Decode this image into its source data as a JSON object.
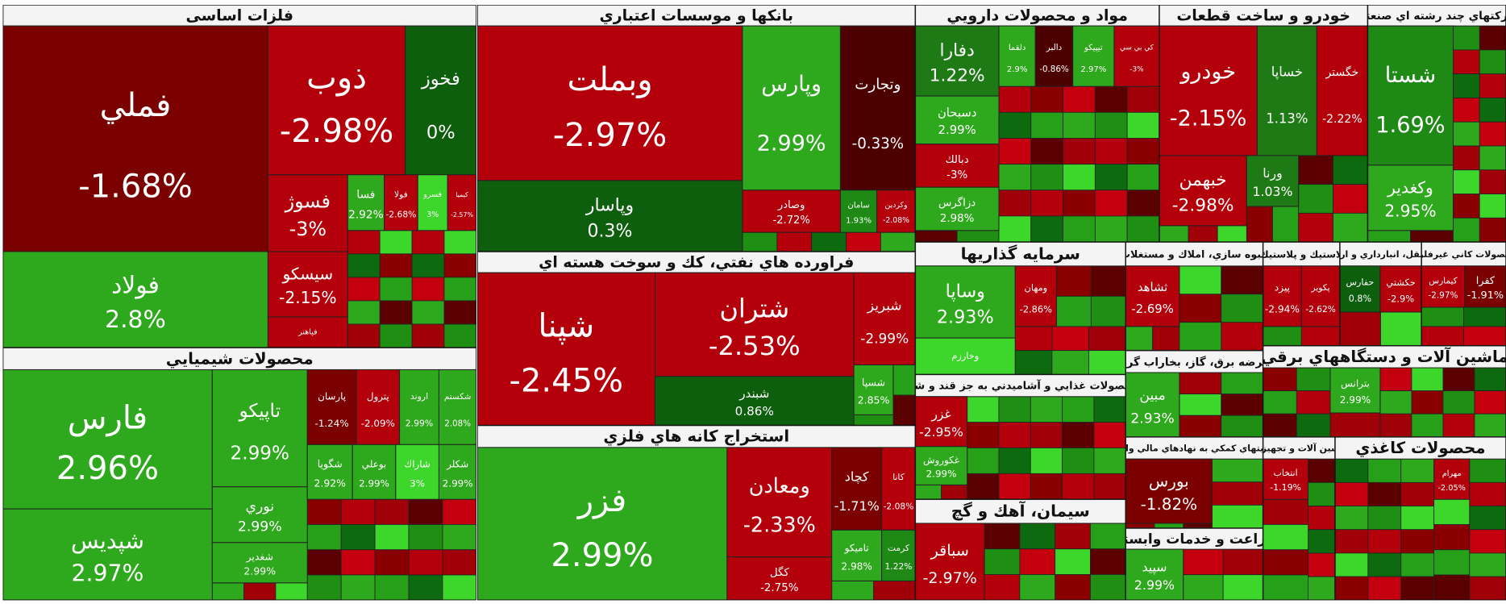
{
  "chart_data": {
    "type": "treemap",
    "sectors": [
      {
        "title": "فلزات اساسی",
        "categories": [
          "فملي",
          "فولاد",
          "ذوب",
          "فخوز",
          "فسوژ",
          "سيسكو",
          "فپاهنر",
          "فسا",
          "فولا",
          "فسرو",
          "كيميا"
        ],
        "values": [
          -1.68,
          2.8,
          -2.98,
          0,
          -3,
          -2.15,
          null,
          2.92,
          -2.68,
          3,
          -2.57
        ],
        "value_labels": [
          "-1.68%",
          "2.8%",
          "-2.98%",
          "0%",
          "-3%",
          "-2.15%",
          null,
          "2.92%",
          "-2.68%",
          "3%",
          "-2.57%"
        ],
        "colors": [
          "#7b0000",
          "#2ea81c",
          "#b3000b",
          "#0d5e0d",
          "#b3000b",
          "#b3000b",
          "#b3000b",
          "#2ea81c",
          "#b3000b",
          "#3dd62a",
          "#b3000b"
        ]
      },
      {
        "title": "محصولات شيميايي",
        "categories": [
          "فارس",
          "شپديس",
          "تاپيكو",
          "نوري",
          "شغدير",
          "پارسان",
          "پترول",
          "اروند",
          "شكستم",
          "شگويا",
          "بوعلي",
          "شاراك",
          "شكلر"
        ],
        "values": [
          2.96,
          2.97,
          2.99,
          2.99,
          2.99,
          -1.24,
          -2.09,
          2.99,
          2.08,
          2.92,
          2.99,
          3,
          2.99
        ],
        "value_labels": [
          "2.96%",
          "2.97%",
          "2.99%",
          "2.99%",
          "2.99%",
          "-1.24%",
          "-2.09%",
          "2.99%",
          "2.08%",
          "2.92%",
          "2.99%",
          "3%",
          "2.99%"
        ],
        "colors": [
          "#2ea81c",
          "#2ea81c",
          "#2ea81c",
          "#2ea81c",
          "#2ea81c",
          "#7b0000",
          "#b3000b",
          "#2ea81c",
          "#2ea81c",
          "#2ea81c",
          "#2ea81c",
          "#3dd62a",
          "#2ea81c"
        ]
      },
      {
        "title": "بانكها و موسسات اعتباري",
        "categories": [
          "وبملت",
          "وپاسار",
          "وپارس",
          "وتجارت",
          "وصادر",
          "سامان",
          "وكردين"
        ],
        "values": [
          -2.97,
          0.3,
          2.99,
          -0.33,
          -2.72,
          1.93,
          -2.08
        ],
        "value_labels": [
          "-2.97%",
          "0.3%",
          "2.99%",
          "-0.33%",
          "-2.72%",
          "1.93%",
          "-2.08%"
        ],
        "colors": [
          "#b3000b",
          "#0d5e0d",
          "#2ea81c",
          "#4d0000",
          "#b3000b",
          "#1e8a15",
          "#b3000b"
        ]
      },
      {
        "title": "فراورده هاي نفتي، كك و سوخت هسته اي",
        "categories": [
          "شپنا",
          "شتران",
          "شبندر",
          "شبريز",
          "شسپا"
        ],
        "values": [
          -2.45,
          -2.53,
          0.86,
          -2.99,
          2.85
        ],
        "value_labels": [
          "-2.45%",
          "-2.53%",
          "0.86%",
          "-2.99%",
          "2.85%"
        ],
        "colors": [
          "#b3000b",
          "#b3000b",
          "#0d5e0d",
          "#b3000b",
          "#2ea81c"
        ]
      },
      {
        "title": "استخراج كانه هاي فلزي",
        "categories": [
          "فزر",
          "ومعادن",
          "كگل",
          "كچاد",
          "كانا",
          "تاميكو",
          "كرمت"
        ],
        "values": [
          2.99,
          -2.33,
          -2.75,
          -1.71,
          -2.08,
          2.98,
          1.22
        ],
        "value_labels": [
          "2.99%",
          "-2.33%",
          "-2.75%",
          "-1.71%",
          "-2.08%",
          "2.98%",
          "1.22%"
        ],
        "colors": [
          "#2ea81c",
          "#b3000b",
          "#b3000b",
          "#7b0000",
          "#b3000b",
          "#2ea81c",
          "#1e8a15"
        ]
      },
      {
        "title": "مواد و محصولات دارويي",
        "categories": [
          "دفارا",
          "دسبحان",
          "دبالك",
          "دزاگرس",
          "دلقما",
          "دالبر",
          "تيپيكو",
          "كي بي سي"
        ],
        "values": [
          1.22,
          2.99,
          -3,
          2.98,
          2.9,
          -0.86,
          2.97,
          -3
        ],
        "value_labels": [
          "1.22%",
          "2.99%",
          "-3%",
          "2.98%",
          "2.9%",
          "-0.86%",
          "2.97%",
          "-3%"
        ],
        "colors": [
          "#1e7a15",
          "#2ea81c",
          "#b3000b",
          "#2ea81c",
          "#2ea81c",
          "#4d0000",
          "#2ea81c",
          "#b3000b"
        ]
      },
      {
        "title": "خودرو و ساخت قطعات",
        "categories": [
          "خودرو",
          "خساپا",
          "خگستر",
          "خبهمن",
          "ورنا"
        ],
        "values": [
          -2.15,
          1.13,
          -2.22,
          -2.98,
          1.03
        ],
        "value_labels": [
          "-2.15%",
          "1.13%",
          "-2.22%",
          "-2.98%",
          "1.03%"
        ],
        "colors": [
          "#b3000b",
          "#1e7a15",
          "#b3000b",
          "#b3000b",
          "#1e7a15"
        ]
      },
      {
        "title": "شركتهاي چند رشته اي صنعتي",
        "categories": [
          "شستا",
          "وكغدير"
        ],
        "values": [
          1.69,
          2.95
        ],
        "value_labels": [
          "1.69%",
          "2.95%"
        ],
        "colors": [
          "#1e8a15",
          "#2ea81c"
        ]
      },
      {
        "title": "سرمايه گذاريها",
        "categories": [
          "وساپا",
          "وخارزم",
          "ومهان"
        ],
        "values": [
          2.93,
          null,
          -2.86
        ],
        "value_labels": [
          "2.93%",
          null,
          "-2.86%"
        ],
        "colors": [
          "#2ea81c",
          "#3dd62a",
          "#b3000b"
        ]
      },
      {
        "title": "محصولات غذايي و آشاميدني به جز قند و شكر",
        "categories": [
          "غزر",
          "غكوروش"
        ],
        "values": [
          -2.95,
          2.99
        ],
        "value_labels": [
          "-2.95%",
          "2.99%"
        ],
        "colors": [
          "#b3000b",
          "#2ea81c"
        ]
      },
      {
        "title": "سيمان، آهك و گچ",
        "categories": [
          "سباقر"
        ],
        "values": [
          -2.97
        ],
        "value_labels": [
          "-2.97%"
        ],
        "colors": [
          "#b3000b"
        ]
      },
      {
        "title": "انبوه سازي، املاك و مستغلات",
        "categories": [
          "ثشاهد"
        ],
        "values": [
          -2.69
        ],
        "value_labels": [
          "-2.69%"
        ],
        "colors": [
          "#b3000b"
        ]
      },
      {
        "title": "عرضه برق، گاز، بخاراب گرم",
        "categories": [
          "مبين"
        ],
        "values": [
          2.93
        ],
        "value_labels": [
          "2.93%"
        ],
        "colors": [
          "#2ea81c"
        ]
      },
      {
        "title": "فعاليتهاي كمكي به نهادهاي مالي واسط",
        "categories": [
          "بورس"
        ],
        "values": [
          -1.82
        ],
        "value_labels": [
          "-1.82%"
        ],
        "colors": [
          "#7b0000"
        ]
      },
      {
        "title": "زراعت و خدمات وابسته",
        "categories": [
          "سپيد"
        ],
        "values": [
          2.99
        ],
        "value_labels": [
          "2.99%"
        ],
        "colors": [
          "#2ea81c"
        ]
      },
      {
        "title": "لاستيك و پلاستيك",
        "categories": [
          "پيزد",
          "پكوير"
        ],
        "values": [
          -2.94,
          -2.62
        ],
        "value_labels": [
          "-2.94%",
          "-2.62%"
        ],
        "colors": [
          "#b3000b",
          "#b3000b"
        ]
      },
      {
        "title": "حمل ونقل، انبارداري و ارتباطات",
        "categories": [
          "حفارس",
          "حكشتي"
        ],
        "values": [
          0.8,
          -2.9
        ],
        "value_labels": [
          "0.8%",
          "-2.9%"
        ],
        "colors": [
          "#0d5e0d",
          "#b3000b"
        ]
      },
      {
        "title": "محصولات كاني غيرفلزي",
        "categories": [
          "كيمارس",
          "كفرا"
        ],
        "values": [
          -2.97,
          -1.91
        ],
        "value_labels": [
          "-2.97%",
          "-1.91%"
        ],
        "colors": [
          "#b3000b",
          "#7b0000"
        ]
      },
      {
        "title": "ماشين آلات و دستگاههاي برقي",
        "categories": [
          "بترانس"
        ],
        "values": [
          2.99
        ],
        "value_labels": [
          "2.99%"
        ],
        "colors": [
          "#2ea81c"
        ]
      },
      {
        "title": "ماشين آلات و تجهيزات",
        "categories": [
          "انتخاب"
        ],
        "values": [
          -1.19
        ],
        "value_labels": [
          "-1.19%"
        ],
        "colors": [
          "#b3000b"
        ]
      },
      {
        "title": "محصولات كاغذي",
        "categories": [
          "مهرام"
        ],
        "values": [
          -2.05
        ],
        "value_labels": [
          "-2.05%"
        ],
        "colors": [
          "#b3000b"
        ]
      }
    ]
  }
}
